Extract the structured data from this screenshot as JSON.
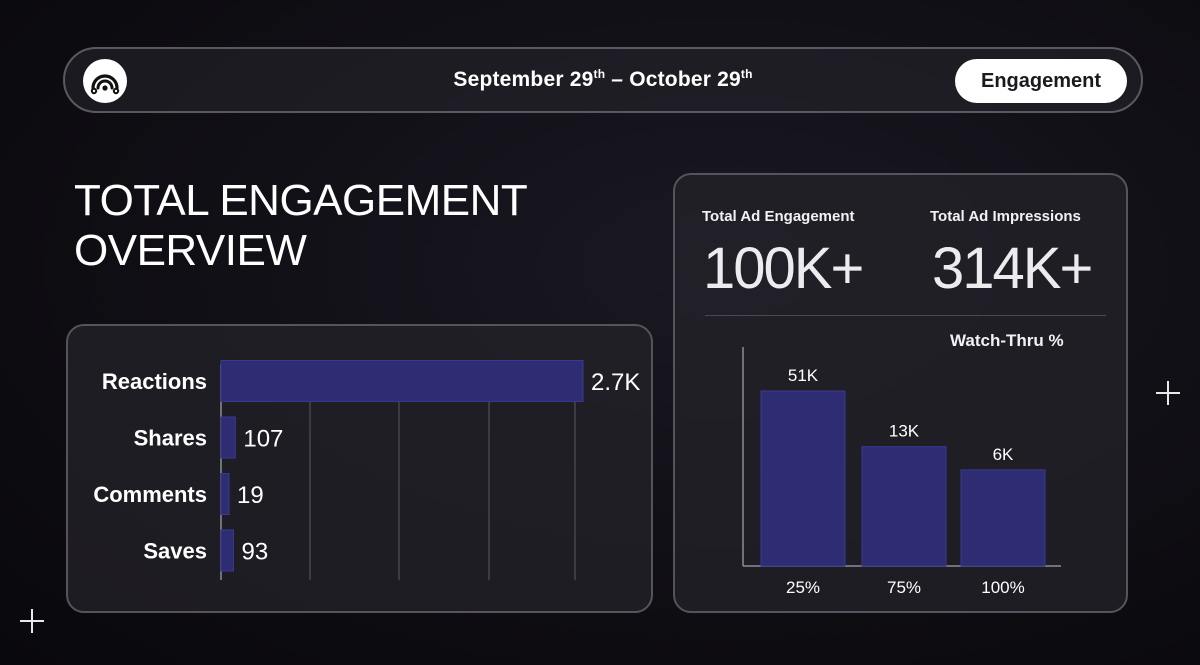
{
  "header": {
    "date_part1": "September 29",
    "date_sup1": "th",
    "date_sep": " – ",
    "date_part2": "October 29",
    "date_sup2": "th",
    "pill_label": "Engagement"
  },
  "page_title": {
    "line1": "TOTAL ENGAGEMENT",
    "line2": "OVERVIEW"
  },
  "kpis": [
    {
      "label": "Total Ad Engagement",
      "value": "100K+"
    },
    {
      "label": "Total Ad Impressions",
      "value": "314K+"
    }
  ],
  "colors": {
    "bar": "#2e2d73",
    "bar_stroke": "#3a3990",
    "grid": "#5a5862"
  },
  "chart_data": [
    {
      "type": "bar",
      "orientation": "horizontal",
      "title": "",
      "categories": [
        "Reactions",
        "Shares",
        "Comments",
        "Saves"
      ],
      "values": [
        2700,
        107,
        19,
        93
      ],
      "value_labels": [
        "2.7K",
        "107",
        "19",
        "93"
      ],
      "grid": true
    },
    {
      "type": "bar",
      "orientation": "vertical",
      "title": "Watch-Thru %",
      "categories": [
        "25%",
        "75%",
        "100%"
      ],
      "values": [
        51000,
        13000,
        6000
      ],
      "value_labels": [
        "51K",
        "13K",
        "6K"
      ],
      "grid": false
    }
  ]
}
